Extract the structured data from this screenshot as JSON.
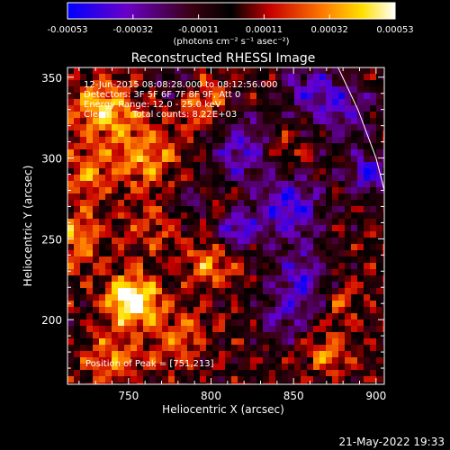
{
  "chart_data": {
    "type": "heatmap",
    "title": "Reconstructed RHESSI Image",
    "xlabel": "Heliocentric X (arcsec)",
    "ylabel": "Heliocentric Y (arcsec)",
    "xlim": [
      713,
      905
    ],
    "ylim": [
      160,
      356
    ],
    "x_ticks": [
      750,
      800,
      850,
      900
    ],
    "y_ticks": [
      200,
      250,
      300,
      350
    ],
    "colorbar": {
      "unit_label": "(photons cm⁻² s⁻¹ asec⁻²)",
      "range": [
        -0.00053,
        0.00053
      ],
      "ticks": [
        "-0.00053",
        "-0.00032",
        "-0.00011",
        "0.00011",
        "0.00032",
        "0.00053"
      ],
      "colormap": [
        "#0000ff",
        "#6a00c8",
        "#3a0010",
        "#000000",
        "#c80000",
        "#ff7a00",
        "#ffe000",
        "#ffffff"
      ]
    },
    "annotations": {
      "time_range": "12-Jun-2015 08:08:28.000 to 08:12:56.000",
      "detectors": "Detectors: 3F 5F 6F 7F 8F 9F, Att 0",
      "energy_range": "Energy Range: 12.0 - 25.0 keV",
      "clean_label": "Clean",
      "total_counts": "Total counts: 8.22E+03",
      "peak_position": "Position of Peak = [751,213]"
    },
    "peak": {
      "x": 751,
      "y": 213
    },
    "limb_arc": [
      [
        877,
        356
      ],
      [
        889,
        330
      ],
      [
        900,
        300
      ],
      [
        905,
        280
      ]
    ]
  },
  "footer": {
    "timestamp": "21-May-2022 19:33"
  }
}
